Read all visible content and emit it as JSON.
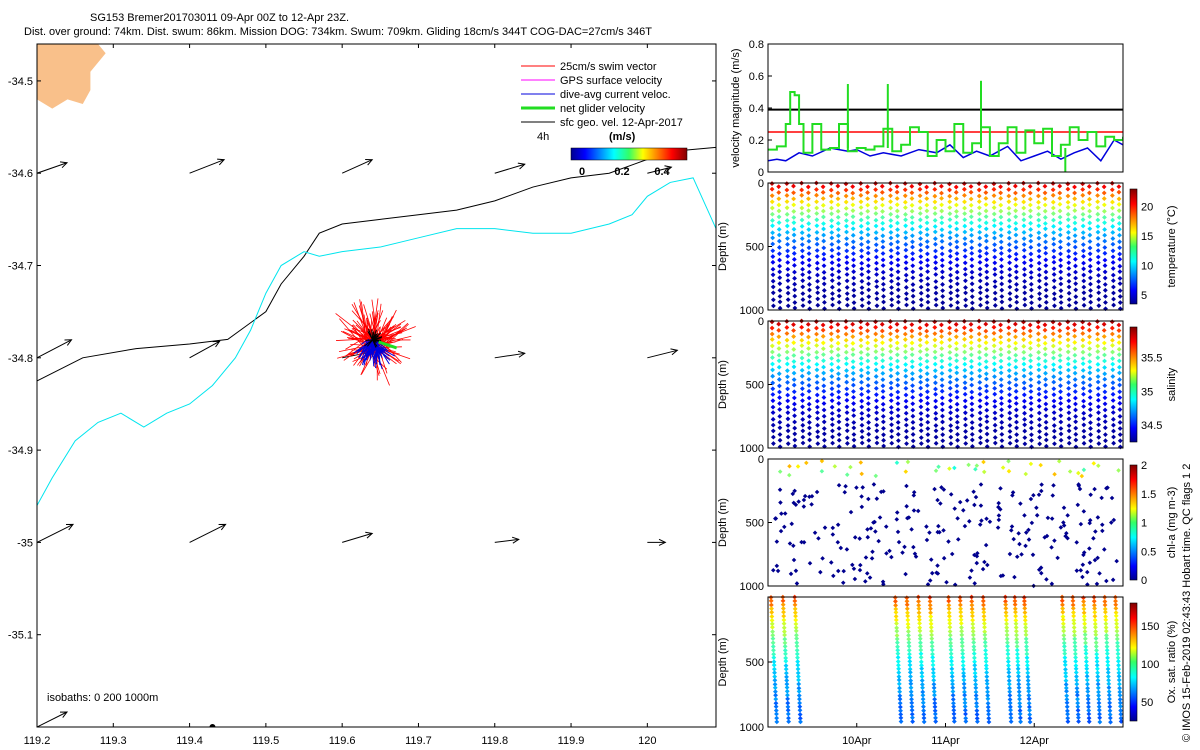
{
  "header": {
    "line1": "SG153 Bremer201703011 09-Apr 00Z to 12-Apr 23Z.",
    "line2": "Dist. over ground: 74km. Dist. swum: 86km. Mission DOG: 734km. Swum: 709km. Gliding 18cm/s 344T COG-DAC=27cm/s 346T"
  },
  "footer_note": "© IMOS 15-Feb-2019 02:43:43 Hobart time. QC flags 1  2",
  "colors": {
    "land": "#f9c08a",
    "swim": "#ff0000",
    "gps": "#ff00ff",
    "dac": "#0000dd",
    "net": "#22dd22",
    "geo": "#000000",
    "iso200": "#000000",
    "iso1000": "#00e5ee"
  },
  "chart_data": [
    {
      "id": "map",
      "type": "scatter",
      "title": "",
      "xlabel": "",
      "ylabel": "",
      "xlim": [
        119.2,
        120.09
      ],
      "ylim": [
        -35.2,
        -34.46
      ],
      "x_ticks": [
        119.2,
        119.3,
        119.4,
        119.5,
        119.6,
        119.7,
        119.8,
        119.9,
        120
      ],
      "y_ticks": [
        -34.5,
        -34.6,
        -34.7,
        -34.8,
        -34.9,
        -35,
        -35.1
      ],
      "legend": [
        "25cm/s swim vector",
        "GPS surface velocity",
        "dive-avg current veloc.",
        "net glider velocity",
        "sfc geo. vel. 12-Apr-2017"
      ],
      "legend_location": "top-right",
      "colorbar": {
        "title": "(m/s)",
        "ticks": [
          "0",
          "0.2",
          "0.4"
        ],
        "range": [
          0,
          0.45
        ],
        "caption": "4h"
      },
      "isobaths_label": "isobaths: 0   200   1000m",
      "isobath_200": {
        "lon": [
          119.2,
          119.26,
          119.33,
          119.4,
          119.45,
          119.5,
          119.52,
          119.55,
          119.57,
          119.6,
          119.65,
          119.7,
          119.75,
          119.8,
          119.85,
          119.9,
          119.95,
          120.0,
          120.05,
          120.09
        ],
        "lat": [
          -34.825,
          -34.8,
          -34.79,
          -34.785,
          -34.78,
          -34.75,
          -34.72,
          -34.69,
          -34.665,
          -34.655,
          -34.65,
          -34.645,
          -34.64,
          -34.63,
          -34.615,
          -34.605,
          -34.6,
          -34.585,
          -34.575,
          -34.572
        ]
      },
      "isobath_1000": {
        "lon": [
          119.2,
          119.22,
          119.25,
          119.28,
          119.31,
          119.34,
          119.37,
          119.4,
          119.43,
          119.46,
          119.48,
          119.5,
          119.52,
          119.55,
          119.57,
          119.6,
          119.65,
          119.7,
          119.75,
          119.8,
          119.85,
          119.9,
          119.95,
          119.98,
          120.0,
          120.03,
          120.06,
          120.09
        ],
        "lat": [
          -34.96,
          -34.93,
          -34.89,
          -34.87,
          -34.86,
          -34.875,
          -34.86,
          -34.85,
          -34.83,
          -34.8,
          -34.77,
          -34.73,
          -34.7,
          -34.685,
          -34.69,
          -34.685,
          -34.68,
          -34.67,
          -34.66,
          -34.66,
          -34.665,
          -34.665,
          -34.655,
          -34.645,
          -34.625,
          -34.61,
          -34.605,
          -34.66
        ]
      },
      "land_coast": {
        "lon": [
          119.2,
          119.2,
          119.22,
          119.24,
          119.26,
          119.27,
          119.27,
          119.29,
          119.28
        ],
        "lat": [
          -34.46,
          -34.52,
          -34.53,
          -34.52,
          -34.525,
          -34.51,
          -34.49,
          -34.47,
          -34.46
        ]
      },
      "island": {
        "lon": 119.43,
        "lat": -35.2
      },
      "geo_arrows": [
        {
          "lon": 119.2,
          "lat": -34.6,
          "u": 1.0,
          "v": 0.35
        },
        {
          "lon": 119.4,
          "lat": -34.6,
          "u": 1.15,
          "v": 0.45
        },
        {
          "lon": 119.6,
          "lat": -34.6,
          "u": 1.0,
          "v": 0.45
        },
        {
          "lon": 119.8,
          "lat": -34.6,
          "u": 1.0,
          "v": 0.3
        },
        {
          "lon": 120.0,
          "lat": -34.6,
          "u": 0.8,
          "v": 0.2
        },
        {
          "lon": 119.2,
          "lat": -34.8,
          "u": 1.15,
          "v": 0.6
        },
        {
          "lon": 119.4,
          "lat": -34.8,
          "u": 1.0,
          "v": 0.55
        },
        {
          "lon": 119.6,
          "lat": -34.8,
          "u": 1.0,
          "v": 0.2
        },
        {
          "lon": 119.8,
          "lat": -34.8,
          "u": 1.0,
          "v": 0.15
        },
        {
          "lon": 120.0,
          "lat": -34.8,
          "u": 1.0,
          "v": 0.25
        },
        {
          "lon": 119.2,
          "lat": -35.0,
          "u": 1.2,
          "v": 0.6
        },
        {
          "lon": 119.4,
          "lat": -35.0,
          "u": 1.2,
          "v": 0.6
        },
        {
          "lon": 119.6,
          "lat": -35.0,
          "u": 1.0,
          "v": 0.3
        },
        {
          "lon": 119.8,
          "lat": -35.0,
          "u": 0.8,
          "v": 0.1
        },
        {
          "lon": 120.0,
          "lat": -35.0,
          "u": 0.6,
          "v": 0.0
        },
        {
          "lon": 119.2,
          "lat": -35.2,
          "u": 1.0,
          "v": 0.5
        }
      ],
      "glider_cluster": {
        "lon": 119.64,
        "lat": -34.785
      }
    },
    {
      "id": "velocity",
      "type": "line",
      "ylabel": "velocity magnitude (m/s)",
      "ylim": [
        0,
        0.8
      ],
      "y_ticks": [
        "0",
        "0.2",
        "0.4",
        "0.6",
        "0.8"
      ],
      "x_days": [
        0,
        4
      ],
      "series": [
        {
          "name": "geo",
          "color": "#000000",
          "x": [
            0,
            4
          ],
          "y": [
            0.39,
            0.39
          ]
        },
        {
          "name": "swim 25cm/s",
          "color": "#ff0000",
          "x": [
            0,
            4
          ],
          "y": [
            0.25,
            0.25
          ]
        },
        {
          "name": "dive-avg",
          "color": "#0000dd",
          "x": [
            0,
            0.1,
            0.2,
            0.35,
            0.5,
            0.7,
            0.9,
            1.0,
            1.15,
            1.3,
            1.5,
            1.7,
            1.9,
            2.05,
            2.2,
            2.35,
            2.5,
            2.7,
            2.85,
            3.0,
            3.15,
            3.3,
            3.45,
            3.6,
            3.75,
            3.9,
            4.0
          ],
          "y": [
            0.07,
            0.08,
            0.07,
            0.12,
            0.1,
            0.15,
            0.13,
            0.14,
            0.1,
            0.12,
            0.1,
            0.14,
            0.12,
            0.17,
            0.09,
            0.13,
            0.1,
            0.16,
            0.07,
            0.1,
            0.13,
            0.08,
            0.12,
            0.15,
            0.07,
            0.2,
            0.17
          ]
        },
        {
          "name": "net",
          "color": "#22dd22",
          "x": [
            0,
            0.1,
            0.2,
            0.25,
            0.3,
            0.35,
            0.4,
            0.5,
            0.6,
            0.7,
            0.8,
            0.9,
            1.0,
            1.1,
            1.2,
            1.3,
            1.4,
            1.5,
            1.6,
            1.7,
            1.8,
            1.9,
            2.0,
            2.1,
            2.2,
            2.3,
            2.4,
            2.5,
            2.6,
            2.7,
            2.8,
            2.9,
            3.0,
            3.1,
            3.2,
            3.3,
            3.4,
            3.5,
            3.6,
            3.7,
            3.8,
            3.9,
            4.0
          ],
          "y": [
            0.14,
            0.16,
            0.3,
            0.5,
            0.48,
            0.3,
            0.12,
            0.3,
            0.14,
            0.15,
            0.3,
            0.13,
            0.15,
            0.14,
            0.16,
            0.27,
            0.13,
            0.17,
            0.28,
            0.25,
            0.1,
            0.2,
            0.13,
            0.3,
            0.12,
            0.18,
            0.28,
            0.1,
            0.18,
            0.28,
            0.12,
            0.26,
            0.18,
            0.27,
            0.1,
            0.17,
            0.28,
            0.2,
            0.25,
            0.16,
            0.22,
            0.2,
            0.22
          ]
        },
        {
          "name": "net-spikes",
          "color": "#22dd22",
          "x": [
            0.9,
            1.35,
            2.4,
            3.35
          ],
          "y": [
            0.55,
            0.55,
            0.57,
            0.0
          ]
        }
      ]
    },
    {
      "id": "temperature",
      "type": "scatter",
      "ylabel": "Depth (m)",
      "colorbar_label": "temperature (°C)",
      "ylim": [
        0,
        1000
      ],
      "y_ticks": [
        "0",
        "500",
        "1000"
      ],
      "clim": [
        3.5,
        23
      ],
      "c_ticks": [
        "5",
        "10",
        "15",
        "20"
      ],
      "profiles": 24,
      "surface_value": 22,
      "deep_value": 4
    },
    {
      "id": "salinity",
      "type": "scatter",
      "ylabel": "Depth (m)",
      "colorbar_label": "salinity",
      "ylim": [
        0,
        1000
      ],
      "y_ticks": [
        "0",
        "500",
        "1000"
      ],
      "clim": [
        34.25,
        35.95
      ],
      "c_ticks": [
        "34.5",
        "35",
        "35.5"
      ],
      "profiles": 24,
      "surface_value": 35.9,
      "deep_value": 34.3
    },
    {
      "id": "chla",
      "type": "scatter",
      "ylabel": "Depth (m)",
      "colorbar_label": "chl-a (mg m-3)",
      "ylim": [
        0,
        1000
      ],
      "y_ticks": [
        "0",
        "500",
        "1000"
      ],
      "clim": [
        0,
        2
      ],
      "c_ticks": [
        "0",
        "0.5",
        "1",
        "1.5",
        "2"
      ],
      "points": 260
    },
    {
      "id": "oxygen",
      "type": "scatter",
      "ylabel": "Depth (m)",
      "colorbar_label": "Ox. sat. ratio (%)",
      "ylim": [
        0,
        1000
      ],
      "y_ticks": [
        "500",
        "1000"
      ],
      "clim": [
        25,
        180
      ],
      "c_ticks": [
        "50",
        "100",
        "150"
      ],
      "x_labels": [
        "10Apr",
        "11Apr",
        "12Apr"
      ],
      "profiles": 20
    }
  ]
}
